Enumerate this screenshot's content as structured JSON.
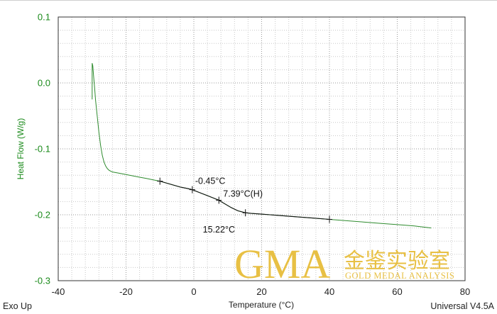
{
  "chart_data": {
    "type": "line",
    "xlabel": "Temperature (°C)",
    "ylabel": "Heat Flow (W/g)",
    "xlim": [
      -40,
      80
    ],
    "ylim": [
      -0.3,
      0.1
    ],
    "x_ticks": [
      "-40",
      "-20",
      "0",
      "20",
      "40",
      "60",
      "80"
    ],
    "y_ticks": [
      "0.1",
      "0.0",
      "-0.1",
      "-0.2",
      "-0.3"
    ],
    "grid": true,
    "series": [
      {
        "color": "#2e8b2e",
        "x": [
          -30.0,
          -30.0,
          -29.8,
          -29.6,
          -29.3,
          -29.0,
          -28.5,
          -28.0,
          -27.5,
          -27.0,
          -26.5,
          -26.0,
          -25.5,
          -25.0,
          -24.5,
          -24.0,
          -22.0,
          -20.0,
          -18.0,
          -16.0,
          -14.0,
          -12.0,
          -10.0,
          -8.0,
          -6.0,
          -4.0,
          -2.0,
          -0.45,
          2.0,
          4.0,
          6.0,
          7.39,
          9.0,
          11.0,
          13.0,
          15.22,
          17.0,
          20.0,
          25.0,
          30.0,
          35.0,
          40.0,
          45.0,
          50.0,
          55.0,
          60.0,
          65.0,
          70.0
        ],
        "y": [
          -0.025,
          0.03,
          0.026,
          0.012,
          -0.005,
          -0.025,
          -0.05,
          -0.075,
          -0.095,
          -0.11,
          -0.12,
          -0.126,
          -0.13,
          -0.1325,
          -0.134,
          -0.135,
          -0.137,
          -0.139,
          -0.141,
          -0.143,
          -0.145,
          -0.147,
          -0.149,
          -0.152,
          -0.155,
          -0.158,
          -0.16,
          -0.162,
          -0.167,
          -0.171,
          -0.175,
          -0.178,
          -0.183,
          -0.189,
          -0.194,
          -0.197,
          -0.198,
          -0.199,
          -0.201,
          -0.203,
          -0.205,
          -0.207,
          -0.209,
          -0.211,
          -0.213,
          -0.215,
          -0.217,
          -0.22
        ]
      }
    ],
    "overlay": {
      "color": "#111111",
      "x": [
        -10.0,
        -8.0,
        -6.0,
        -4.0,
        -2.0,
        -0.45,
        2.0,
        4.0,
        6.0,
        7.39,
        9.0,
        11.0,
        13.0,
        15.22,
        17.0,
        20.0,
        25.0,
        30.0,
        35.0,
        40.0
      ],
      "y": [
        -0.149,
        -0.152,
        -0.155,
        -0.158,
        -0.16,
        -0.162,
        -0.167,
        -0.171,
        -0.175,
        -0.178,
        -0.183,
        -0.189,
        -0.194,
        -0.197,
        -0.198,
        -0.199,
        -0.201,
        -0.203,
        -0.205,
        -0.207
      ]
    },
    "markers": [
      {
        "x": -10.0,
        "y": -0.149
      },
      {
        "x": -0.45,
        "y": -0.162
      },
      {
        "x": 7.39,
        "y": -0.178
      },
      {
        "x": 15.22,
        "y": -0.197
      },
      {
        "x": 40.0,
        "y": -0.207
      }
    ],
    "annotations": [
      {
        "text": "-0.45°C",
        "x": -0.45,
        "y": -0.162
      },
      {
        "text": "7.39°C(H)",
        "x": 7.39,
        "y": -0.178
      },
      {
        "text": "15.22°C",
        "x": 15.22,
        "y": -0.197
      }
    ]
  },
  "footer": {
    "left": "Exo Up",
    "right": "Universal V4.5A"
  },
  "watermark": {
    "brand": "GMA",
    "cn": "金鉴实验室",
    "sub": "GOLD MEDAL ANALYSIS"
  }
}
